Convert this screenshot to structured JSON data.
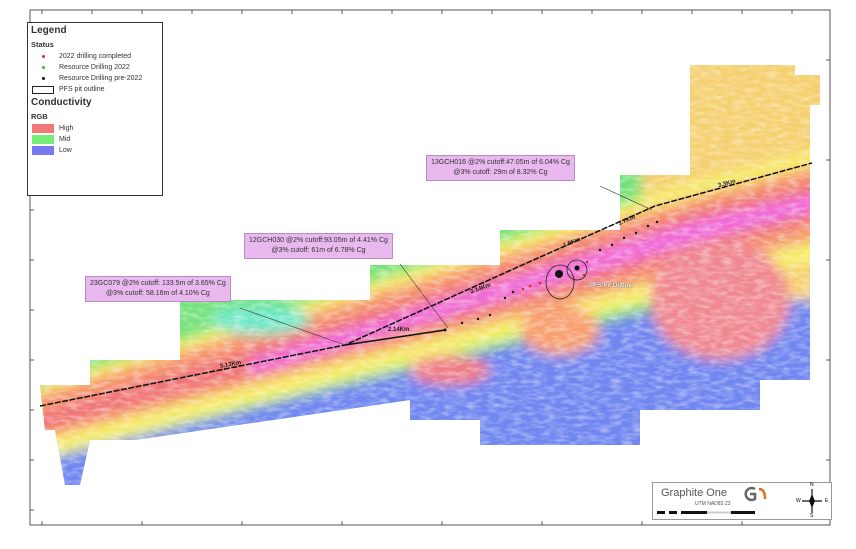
{
  "legend": {
    "title": "Legend",
    "status_heading": "Status",
    "status_items": [
      {
        "label": "2022 drilling completed",
        "color": "#d03030"
      },
      {
        "label": "Resource Drilling 2022",
        "color": "#30c030"
      },
      {
        "label": "Resource Drilling pre-2022",
        "color": "#111111"
      }
    ],
    "outline_label": "PFS pit outline",
    "conductivity_heading": "Conductivity",
    "rgb_heading": "RGB",
    "conductivity_items": [
      {
        "label": "High",
        "color": "#f07878"
      },
      {
        "label": "Mid",
        "color": "#78ec78"
      },
      {
        "label": "Low",
        "color": "#7878f0"
      }
    ]
  },
  "callouts": [
    {
      "line1": "13GCH016 @2% cutoff:47.05m of 6.04% Cg",
      "line2": "@3% cutoff: 29m of 8.32% Cg"
    },
    {
      "line1": "12GCH030 @2% cutoff:93.05m of 4.41% Cg",
      "line2": "@3% cutoff: 61m of 6.78% Cg"
    },
    {
      "line1": "23GC079 @2% cutoff: 133.5m of 3.65% Cg",
      "line2": "@3% cutoff: 58.16m of 4.10% Cg"
    }
  ],
  "segment_labels": [
    "5.13Km",
    "2.14Km",
    "3.14Km",
    "1.9Km",
    "1.7Km",
    "3.3Km"
  ],
  "pit_label": "PFS Pit Outline",
  "brand": {
    "name": "Graphite One",
    "projection": "UTM NAD83 Z3"
  },
  "north_arrow": {
    "n": "N",
    "s": "S",
    "e": "E",
    "w": "W"
  },
  "colors": {
    "high": "#f07878",
    "mid": "#78ec78",
    "low": "#7878f0",
    "callout": "#e8b8ee"
  }
}
